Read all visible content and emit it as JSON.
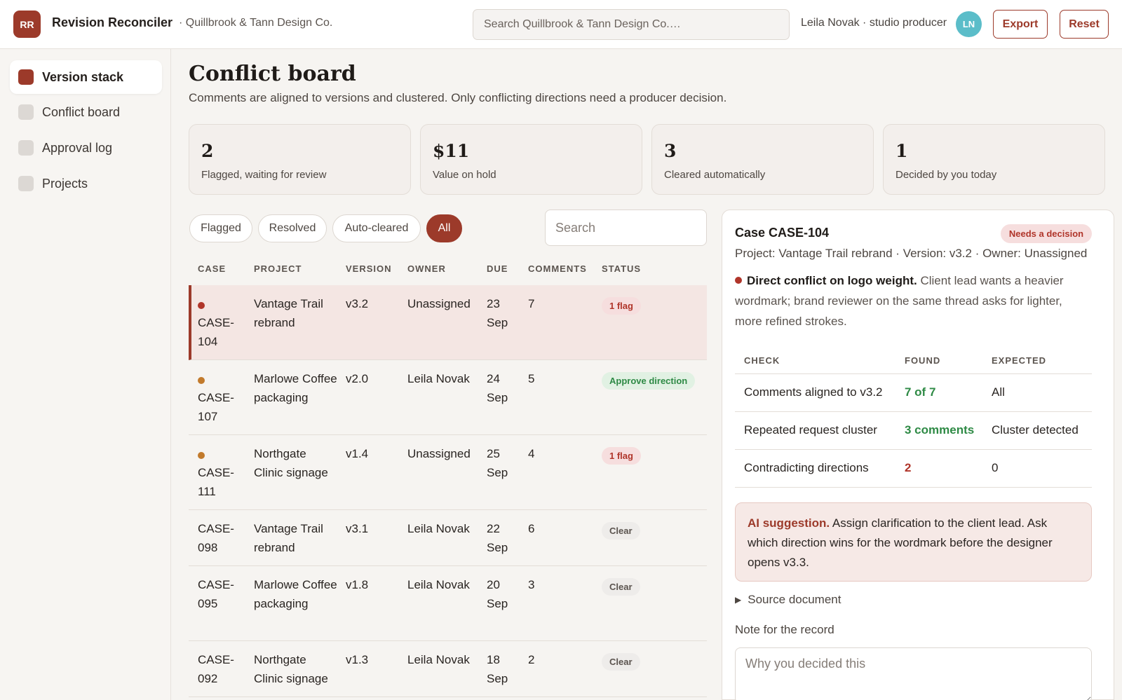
{
  "header": {
    "logo_text": "RR",
    "app_name": "Revision Reconciler",
    "org_name": "· Quillbrook & Tann Design Co.",
    "search_placeholder": "Search Quillbrook & Tann Design Co.…",
    "user_label": "Leila Novak · studio producer",
    "avatar_initials": "LN",
    "export_label": "Export",
    "reset_label": "Reset"
  },
  "sidebar": {
    "items": [
      {
        "label": "Version stack",
        "active": true
      },
      {
        "label": "Conflict board",
        "active": false
      },
      {
        "label": "Approval log",
        "active": false
      },
      {
        "label": "Projects",
        "active": false
      }
    ]
  },
  "page": {
    "title": "Conflict board",
    "subtitle": "Comments are aligned to versions and clustered. Only conflicting directions need a producer decision."
  },
  "stats": [
    {
      "value": "2",
      "label": "Flagged, waiting for review"
    },
    {
      "value": "$11",
      "label": "Value on hold"
    },
    {
      "value": "3",
      "label": "Cleared automatically"
    },
    {
      "value": "1",
      "label": "Decided by you today"
    }
  ],
  "filters": {
    "chips": [
      "Flagged",
      "Resolved",
      "Auto-cleared",
      "All"
    ],
    "active": "All",
    "search_placeholder": "Search"
  },
  "table": {
    "headers": [
      "CASE",
      "PROJECT",
      "VERSION",
      "OWNER",
      "DUE",
      "COMMENTS",
      "STATUS"
    ],
    "rows": [
      {
        "case": "CASE-104",
        "project": "Vantage Trail rebrand",
        "version": "v3.2",
        "owner": "Unassigned",
        "due": "23 Sep",
        "comments": "7",
        "status": "1 flag",
        "status_kind": "flag",
        "dot_color": "#b0352a",
        "selected": true
      },
      {
        "case": "CASE-107",
        "project": "Marlowe Coffee packaging",
        "version": "v2.0",
        "owner": "Leila Novak",
        "due": "24 Sep",
        "comments": "5",
        "status": "Approve direction",
        "status_kind": "approve",
        "dot_color": "#c27a2c",
        "selected": false
      },
      {
        "case": "CASE-111",
        "project": "Northgate Clinic signage",
        "version": "v1.4",
        "owner": "Unassigned",
        "due": "25 Sep",
        "comments": "4",
        "status": "1 flag",
        "status_kind": "flag",
        "dot_color": "#c27a2c",
        "selected": false
      },
      {
        "case": "CASE-098",
        "project": "Vantage Trail rebrand",
        "version": "v3.1",
        "owner": "Leila Novak",
        "due": "22 Sep",
        "comments": "6",
        "status": "Clear",
        "status_kind": "clear",
        "dot_color": "",
        "selected": false
      },
      {
        "case": "CASE-095",
        "project": "Marlowe Coffee packaging",
        "version": "v1.8",
        "owner": "Leila Novak",
        "due": "20 Sep",
        "comments": "3",
        "status": "Clear",
        "status_kind": "clear",
        "dot_color": "",
        "selected": false
      },
      {
        "case": "CASE-092",
        "project": "Northgate Clinic signage",
        "version": "v1.3",
        "owner": "Leila Novak",
        "due": "18 Sep",
        "comments": "2",
        "status": "Clear",
        "status_kind": "clear",
        "dot_color": "",
        "selected": false
      }
    ]
  },
  "detail": {
    "title": "Case CASE-104",
    "badge": "Needs a decision",
    "meta": "Project: Vantage Trail rebrand · Version: v3.2 · Owner: Unassigned",
    "conflict_title": "Direct conflict on logo weight.",
    "conflict_body": "Client lead wants a heavier wordmark; brand reviewer on the same thread asks for lighter, more refined strokes.",
    "checks_headers": [
      "CHECK",
      "FOUND",
      "EXPECTED"
    ],
    "checks": [
      {
        "check": "Comments aligned to v3.2",
        "found": "7 of 7",
        "expected": "All",
        "found_kind": "good"
      },
      {
        "check": "Repeated request cluster",
        "found": "3 comments",
        "expected": "Cluster detected",
        "found_kind": "good"
      },
      {
        "check": "Contradicting directions",
        "found": "2",
        "expected": "0",
        "found_kind": "bad"
      }
    ],
    "ai_label": "AI suggestion.",
    "ai_text": "Assign clarification to the client lead. Ask which direction wins for the wordmark before the designer opens v3.3.",
    "source_label": "Source document",
    "note_label": "Note for the record",
    "note_placeholder": "Why you decided this"
  }
}
